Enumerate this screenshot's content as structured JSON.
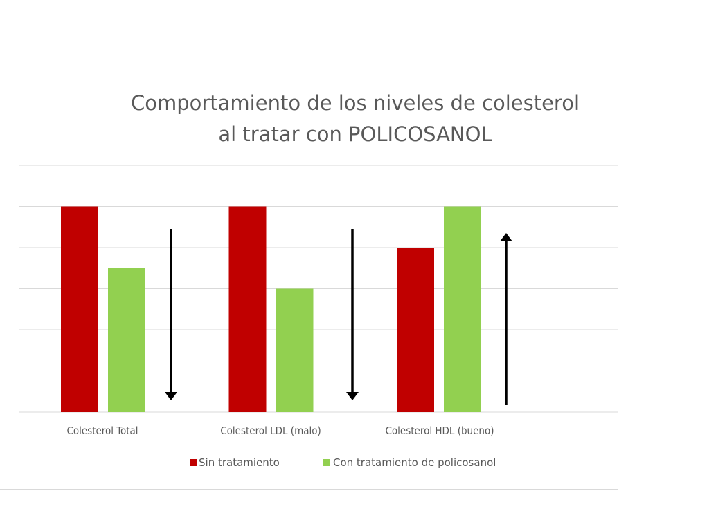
{
  "chart_data": {
    "type": "bar",
    "title_lines": [
      "Comportamiento de los niveles de colesterol",
      "al tratar con POLICOSANOL"
    ],
    "categories": [
      "Colesterol Total",
      "Colesterol LDL (malo)",
      "Colesterol HDL (bueno)"
    ],
    "series": [
      {
        "name": "Sin tratamiento",
        "color": "#c00000",
        "values": [
          5,
          5,
          4
        ]
      },
      {
        "name": "Con tratamiento de policosanol",
        "color": "#92d050",
        "values": [
          3.5,
          3,
          5
        ]
      }
    ],
    "ylim": [
      0,
      6
    ],
    "y_gridlines": [
      0,
      1,
      2,
      3,
      4,
      5,
      6
    ],
    "y_tick_labels_shown": false,
    "grid": true,
    "legend_position": "bottom",
    "annotations": [
      {
        "type": "arrow",
        "category": "Colesterol Total",
        "direction": "down",
        "color": "#000000"
      },
      {
        "type": "arrow",
        "category": "Colesterol LDL (malo)",
        "direction": "down",
        "color": "#000000"
      },
      {
        "type": "arrow",
        "category": "Colesterol HDL (bueno)",
        "direction": "up",
        "color": "#000000"
      }
    ]
  }
}
